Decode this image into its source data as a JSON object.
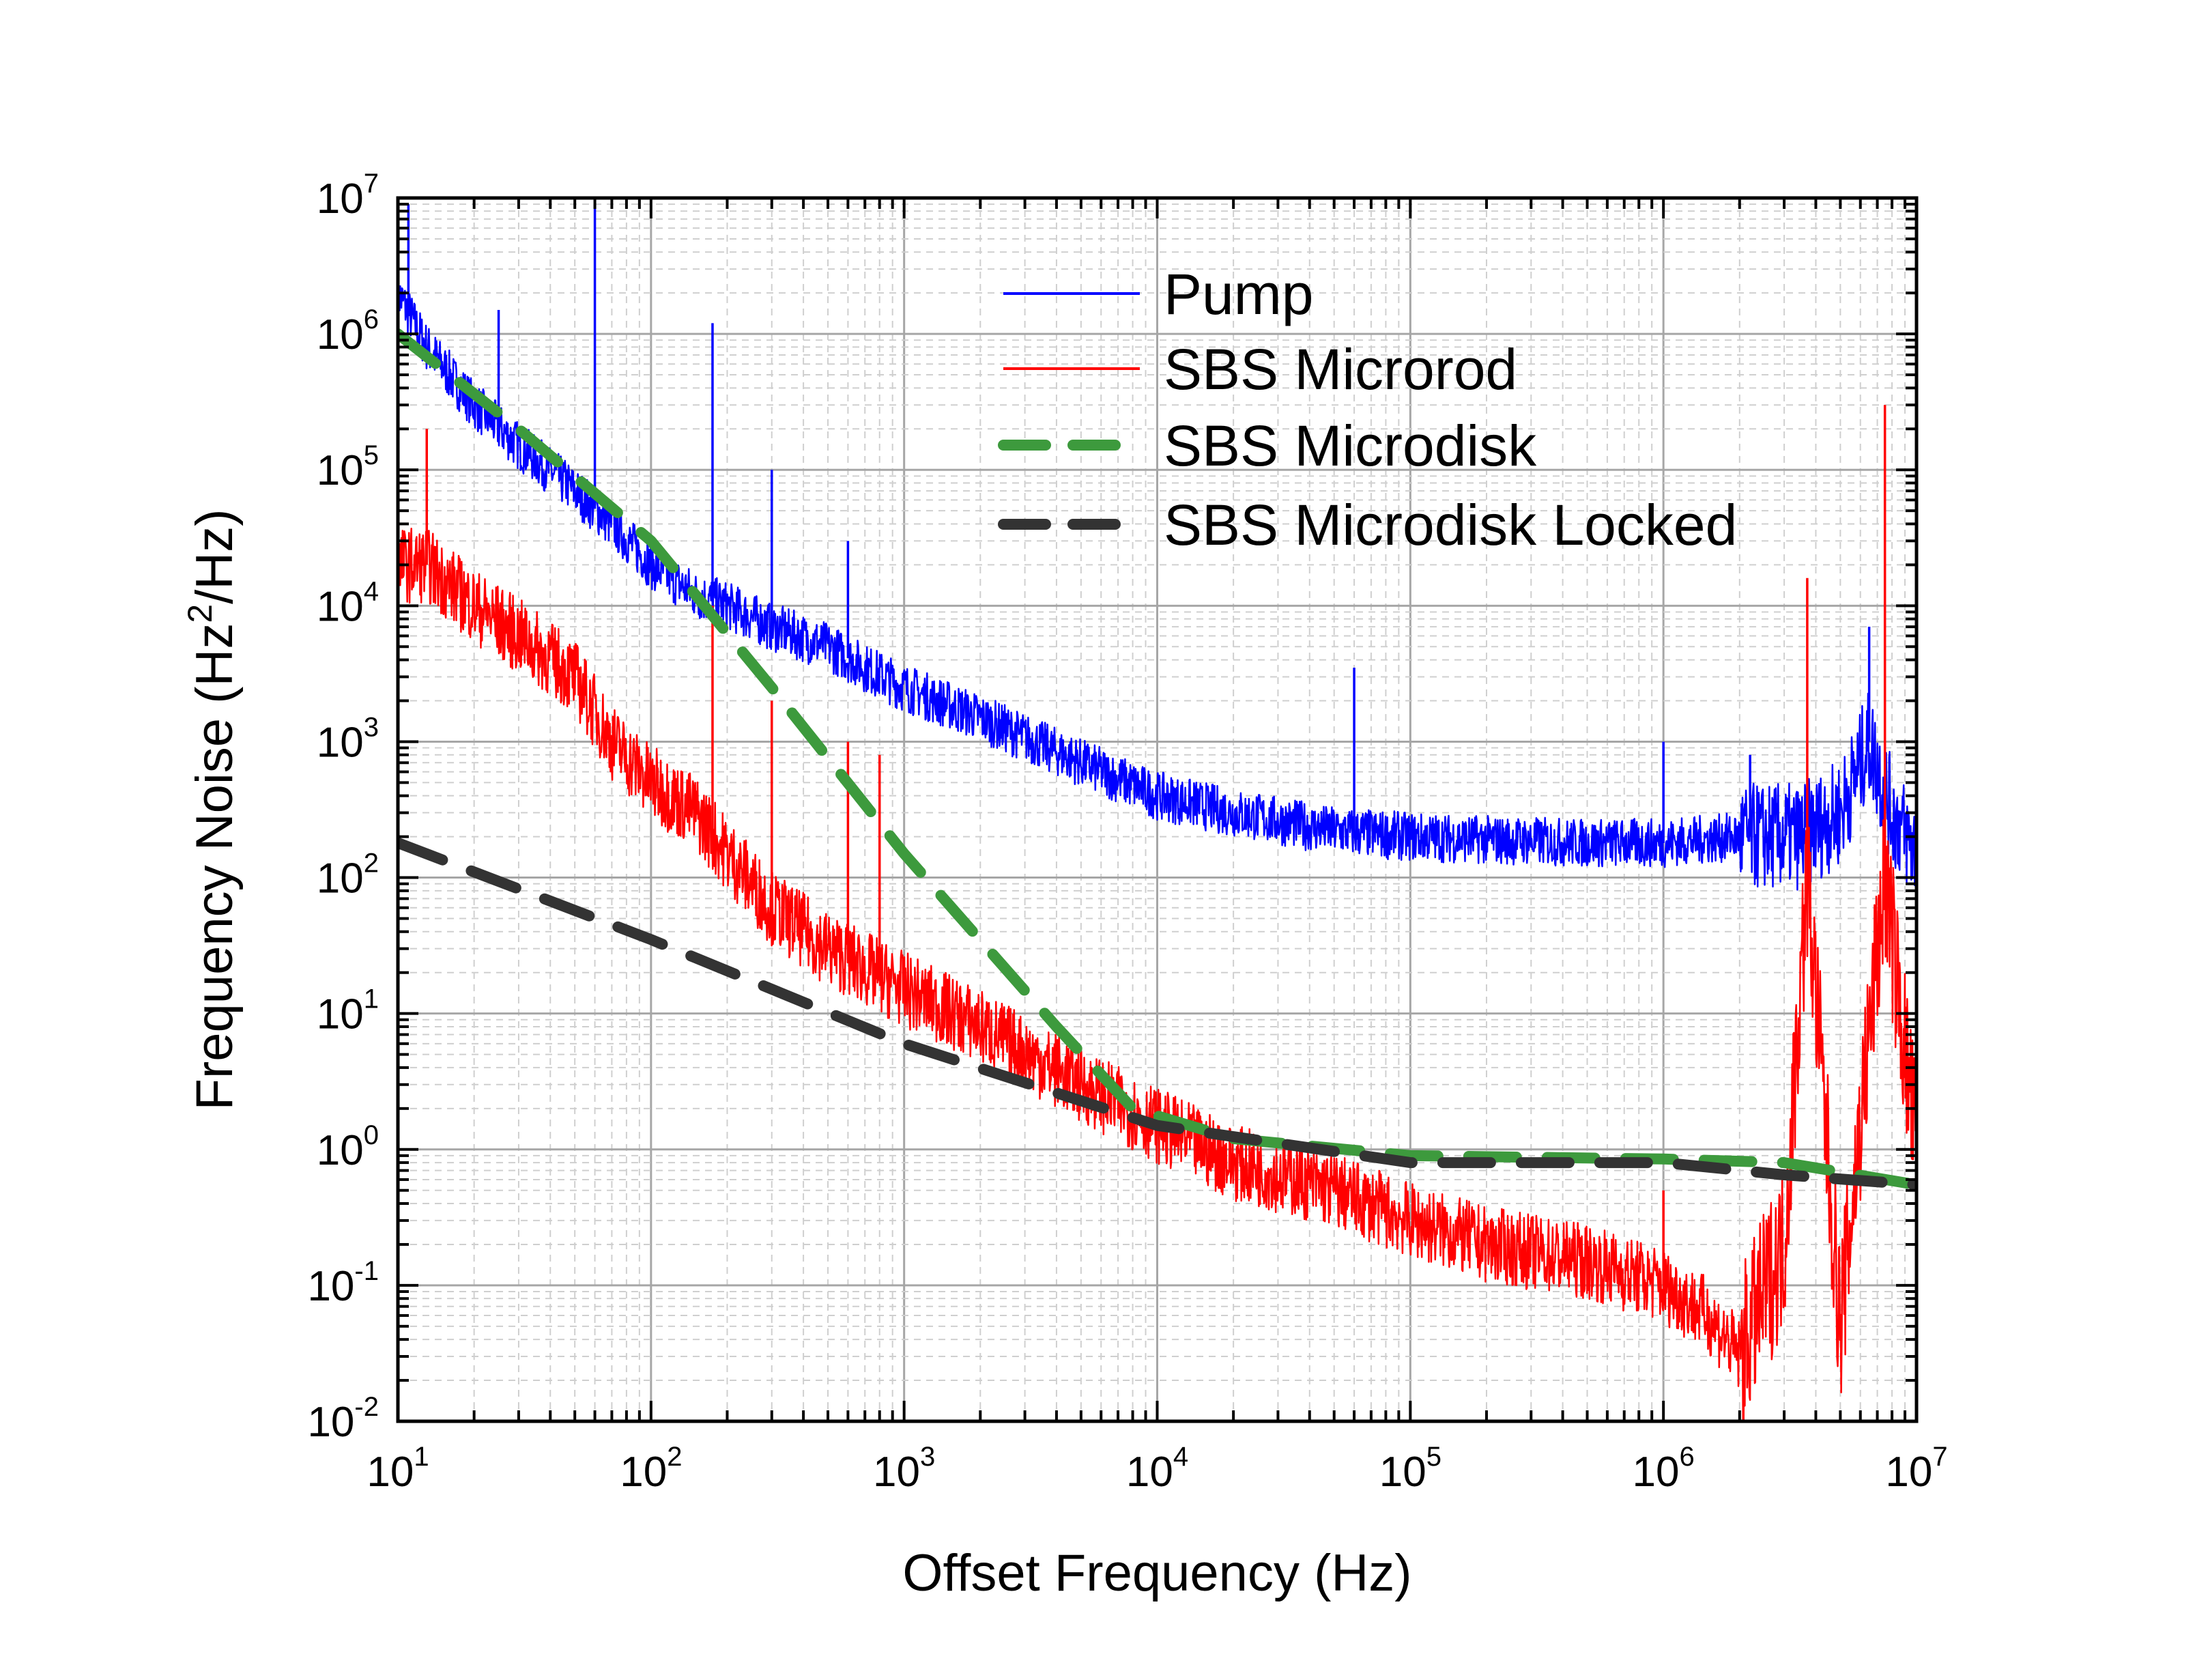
{
  "chart_data": {
    "type": "line",
    "xlabel": "Offset Frequency (Hz)",
    "ylabel_main": "Frequency Noise (Hz",
    "ylabel_sup": "2",
    "ylabel_tail": "/Hz)",
    "x_scale": "log",
    "y_scale": "log",
    "xlim": [
      10,
      10000000
    ],
    "ylim": [
      0.01,
      10000000
    ],
    "grid": true,
    "legend_position": "top-right",
    "x_ticks": [
      {
        "base": "10",
        "exp": "1"
      },
      {
        "base": "10",
        "exp": "2"
      },
      {
        "base": "10",
        "exp": "3"
      },
      {
        "base": "10",
        "exp": "4"
      },
      {
        "base": "10",
        "exp": "5"
      },
      {
        "base": "10",
        "exp": "6"
      },
      {
        "base": "10",
        "exp": "7"
      }
    ],
    "y_ticks": [
      {
        "base": "10",
        "exp": "-2"
      },
      {
        "base": "10",
        "exp": "-1"
      },
      {
        "base": "10",
        "exp": "0"
      },
      {
        "base": "10",
        "exp": "1"
      },
      {
        "base": "10",
        "exp": "2"
      },
      {
        "base": "10",
        "exp": "3"
      },
      {
        "base": "10",
        "exp": "4"
      },
      {
        "base": "10",
        "exp": "5"
      },
      {
        "base": "10",
        "exp": "6"
      },
      {
        "base": "10",
        "exp": "7"
      }
    ],
    "series": [
      {
        "name": "Pump",
        "color": "#0000ff",
        "style": "solid-noisy",
        "x": [
          10,
          13,
          20,
          30,
          50,
          70,
          100,
          150,
          200,
          300,
          500,
          700,
          1000,
          2000,
          5000,
          10000,
          20000,
          50000,
          100000,
          200000,
          500000,
          1000000,
          2000000,
          3500000,
          5000000,
          6500000,
          8000000,
          10000000
        ],
        "y": [
          2000000,
          800000,
          300000,
          150000,
          70000,
          40000,
          20000,
          12000,
          10000,
          7000,
          5000,
          3500,
          2500,
          1500,
          700,
          400,
          300,
          220,
          200,
          190,
          180,
          180,
          200,
          200,
          300,
          1000,
          300,
          150
        ],
        "spikes": [
          {
            "x": 11,
            "y": 9000000
          },
          {
            "x": 25,
            "y": 1500000
          },
          {
            "x": 60,
            "y": 9000000
          },
          {
            "x": 175,
            "y": 1200000
          },
          {
            "x": 300,
            "y": 100000
          },
          {
            "x": 600,
            "y": 30000
          },
          {
            "x": 60000,
            "y": 3500
          },
          {
            "x": 1000000,
            "y": 1000
          },
          {
            "x": 2200000,
            "y": 800
          },
          {
            "x": 6500000,
            "y": 7000
          }
        ]
      },
      {
        "name": "SBS Microrod",
        "color": "#ff0000",
        "style": "solid-noisy",
        "x": [
          10,
          13,
          20,
          30,
          50,
          70,
          100,
          150,
          200,
          300,
          500,
          1000,
          2000,
          5000,
          10000,
          20000,
          50000,
          100000,
          200000,
          500000,
          1000000,
          1500000,
          2000000,
          3000000,
          3700000,
          5000000,
          7500000,
          10000000
        ],
        "y": [
          20000,
          20000,
          10000,
          6000,
          3000,
          1000,
          500,
          300,
          150,
          60,
          30,
          15,
          8,
          3,
          1.5,
          0.8,
          0.5,
          0.3,
          0.2,
          0.15,
          0.1,
          0.06,
          0.03,
          0.2,
          100,
          0.05,
          100,
          1
        ],
        "spikes": [
          {
            "x": 13,
            "y": 200000
          },
          {
            "x": 175,
            "y": 10000
          },
          {
            "x": 300,
            "y": 2000
          },
          {
            "x": 600,
            "y": 1000
          },
          {
            "x": 800,
            "y": 800
          },
          {
            "x": 1000000,
            "y": 0.5
          },
          {
            "x": 3700000,
            "y": 16000
          },
          {
            "x": 7500000,
            "y": 300000
          }
        ]
      },
      {
        "name": "SBS Microdisk",
        "color": "#3d9a3d",
        "style": "dashed",
        "x": [
          10,
          30,
          100,
          300,
          1000,
          4000,
          8000,
          20000,
          100000,
          1000000,
          3000000,
          10000000
        ],
        "y": [
          1000000,
          200000,
          30000,
          2500,
          150,
          8,
          2,
          1.2,
          0.9,
          0.85,
          0.8,
          0.55
        ]
      },
      {
        "name": "SBS Microdisk Locked",
        "color": "#333333",
        "style": "dashed",
        "x": [
          10,
          100,
          1000,
          10000,
          100000,
          1000000,
          3000000,
          10000000
        ],
        "y": [
          180,
          35,
          6,
          1.5,
          0.8,
          0.8,
          0.65,
          0.55
        ]
      }
    ]
  }
}
